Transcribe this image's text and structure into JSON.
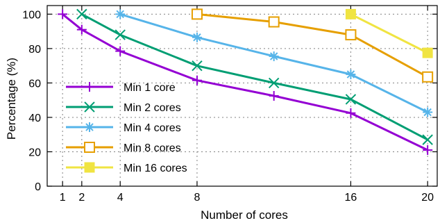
{
  "chart_data": {
    "type": "line",
    "title": "",
    "xlabel": "Number of cores",
    "ylabel": "Percentage (%)",
    "xlim": [
      0.2,
      20.5
    ],
    "ylim": [
      0,
      105
    ],
    "x_ticks": [
      1,
      2,
      4,
      8,
      16,
      20
    ],
    "y_ticks": [
      0,
      20,
      40,
      60,
      80,
      100
    ],
    "grid": true,
    "grid_style": "dotted",
    "legend_position": "bottom-left",
    "series": [
      {
        "name": "Min 1 core",
        "color": "#9400d3",
        "marker": "plus",
        "x": [
          1,
          2,
          4,
          8,
          12,
          16,
          20
        ],
        "values": [
          100,
          91,
          78.5,
          61.5,
          52.5,
          42.5,
          21
        ]
      },
      {
        "name": "Min 2 cores",
        "color": "#009e73",
        "marker": "cross",
        "x": [
          2,
          4,
          8,
          12,
          16,
          20
        ],
        "values": [
          100,
          88,
          70,
          60,
          50.5,
          27
        ]
      },
      {
        "name": "Min 4 cores",
        "color": "#56b4e9",
        "marker": "asterisk",
        "x": [
          4,
          8,
          12,
          16,
          20
        ],
        "values": [
          100,
          86.5,
          75.5,
          65,
          43
        ]
      },
      {
        "name": "Min 8 cores",
        "color": "#e69f00",
        "marker": "open-square",
        "x": [
          8,
          12,
          16,
          20
        ],
        "values": [
          100,
          95.5,
          88,
          63.5
        ]
      },
      {
        "name": "Min 16 cores",
        "color": "#f0e442",
        "marker": "filled-square",
        "x": [
          16,
          20
        ],
        "values": [
          100,
          77.5
        ]
      }
    ]
  }
}
